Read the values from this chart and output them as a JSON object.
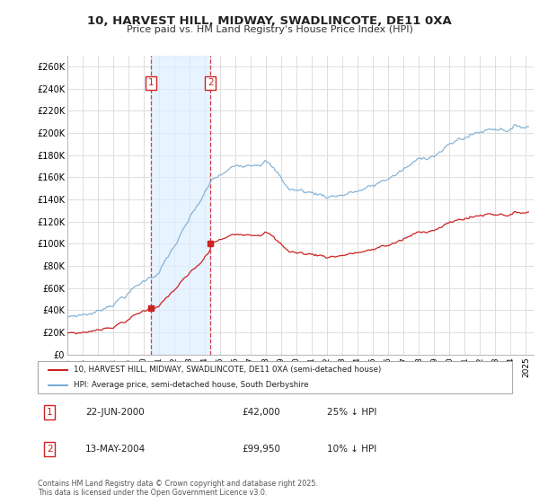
{
  "title": "10, HARVEST HILL, MIDWAY, SWADLINCOTE, DE11 0XA",
  "subtitle": "Price paid vs. HM Land Registry's House Price Index (HPI)",
  "ylim": [
    0,
    270000
  ],
  "yticks": [
    0,
    20000,
    40000,
    60000,
    80000,
    100000,
    120000,
    140000,
    160000,
    180000,
    200000,
    220000,
    240000,
    260000
  ],
  "ytick_labels": [
    "£0",
    "£20K",
    "£40K",
    "£60K",
    "£80K",
    "£100K",
    "£120K",
    "£140K",
    "£160K",
    "£180K",
    "£200K",
    "£220K",
    "£240K",
    "£260K"
  ],
  "hpi_color": "#7aadd4",
  "price_color": "#cc2222",
  "vline_color": "#cc2222",
  "shade_color": "#ddeeff",
  "sale1_year": 2000.47,
  "sale2_year": 2004.36,
  "sale1_price": 42000,
  "sale2_price": 99950,
  "legend_line1": "10, HARVEST HILL, MIDWAY, SWADLINCOTE, DE11 0XA (semi-detached house)",
  "legend_line2": "HPI: Average price, semi-detached house, South Derbyshire",
  "footer": "Contains HM Land Registry data © Crown copyright and database right 2025.\nThis data is licensed under the Open Government Licence v3.0.",
  "background_color": "#ffffff",
  "plot_bg_color": "#ffffff",
  "grid_color": "#dddddd"
}
